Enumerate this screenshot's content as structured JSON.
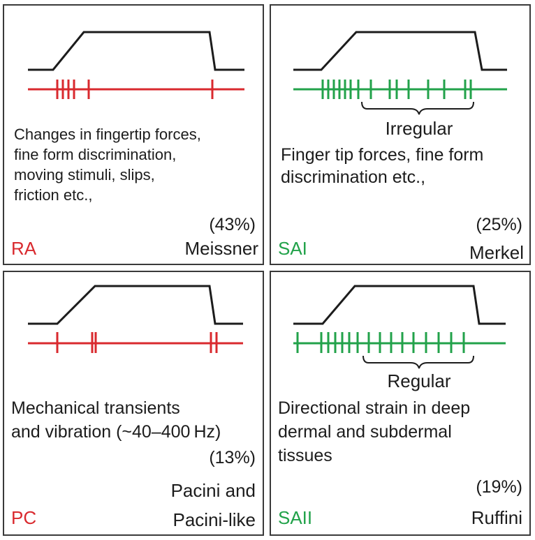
{
  "colors": {
    "rapid": "#d9292e",
    "slow": "#22a24a",
    "stimulus": "#1c1c1c"
  },
  "panels": {
    "ra": {
      "type": "RA",
      "desc": [
        "Changes in fingertip forces,",
        "fine form discrimination,",
        "moving stimuli, slips,",
        "friction etc.,"
      ],
      "percent": "(43%)",
      "receptor": [
        "Meissner"
      ],
      "spike_color": "rapid"
    },
    "sai": {
      "type": "SAI",
      "bracket_label": "Irregular",
      "desc": [
        "Finger tip forces, fine form",
        "discrimination etc.,"
      ],
      "percent": "(25%)",
      "receptor": [
        "Merkel"
      ],
      "spike_color": "slow"
    },
    "pc": {
      "type": "PC",
      "desc": [
        "Mechanical transients",
        "and vibration (~40–400 Hz)"
      ],
      "percent": "(13%)",
      "receptor": [
        "Pacini and",
        "Pacini-like"
      ],
      "spike_color": "rapid"
    },
    "saii": {
      "type": "SAII",
      "bracket_label": "Regular",
      "desc": [
        "Directional strain in deep",
        "dermal and subdermal",
        "tissues"
      ],
      "percent": "(19%)",
      "receptor": [
        "Ruffini"
      ],
      "spike_color": "slow"
    }
  }
}
